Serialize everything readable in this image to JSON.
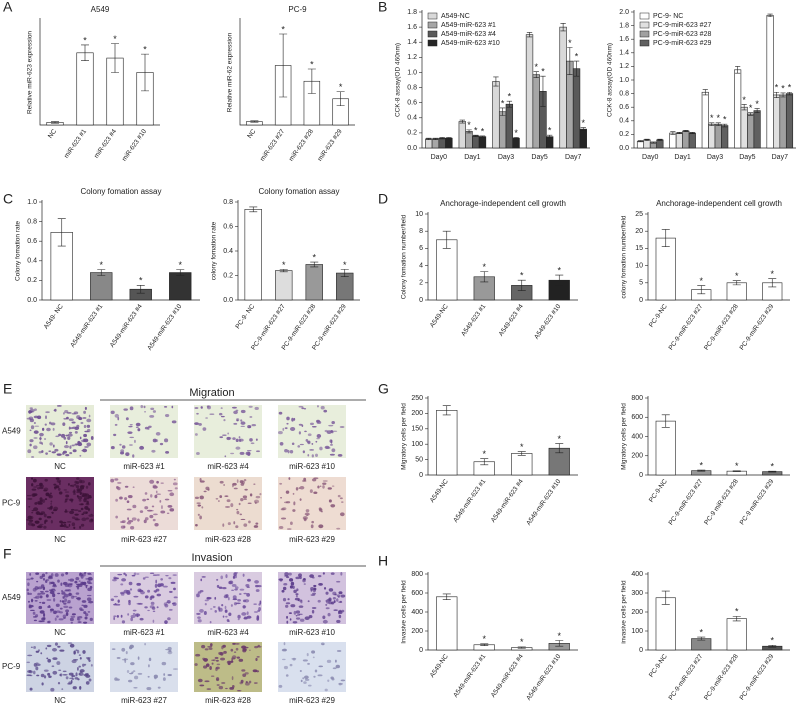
{
  "panel_labels": [
    "A",
    "B",
    "C",
    "D",
    "E",
    "F",
    "G",
    "H"
  ],
  "micrographs": [
    {
      "title": "Migration",
      "rows": [
        {
          "label": "A549",
          "captions": [
            "NC",
            "miR-623 #1",
            "miR-623 #4",
            "miR-623 #10"
          ]
        },
        {
          "label": "PC-9",
          "captions": [
            "NC",
            "miR-623 #27",
            "miR-623 #28",
            "miR-623 #29"
          ]
        }
      ]
    },
    {
      "title": "Invasion",
      "rows": [
        {
          "label": "A549",
          "captions": [
            "NC",
            "miR-623 #1",
            "miR-623 #4",
            "miR-623 #10"
          ]
        },
        {
          "label": "PC-9",
          "captions": [
            "NC",
            "miR-623 #27",
            "miR-623 #28",
            "miR-623 #29"
          ]
        }
      ]
    }
  ],
  "chart_data": [
    {
      "type": "bar",
      "title": "A549",
      "ylabel": "Relative miR-623 expression",
      "categories": [
        "NC",
        "miR-623 #1",
        "miR-623 #4",
        "miR-623 #10"
      ],
      "values": [
        1,
        27.5,
        25.5,
        20
      ],
      "errors": [
        0.3,
        3,
        5.5,
        7
      ],
      "stars": [
        null,
        "*",
        "*",
        "*"
      ],
      "colors": [
        "#ffffff",
        "#ffffff",
        "#ffffff",
        "#ffffff"
      ],
      "ylim": [
        0,
        40
      ]
    },
    {
      "type": "bar",
      "title": "PC-9",
      "ylabel": "Relative miR-62 expression",
      "categories": [
        "NC",
        "miR-623 #27",
        "miR-623 #28",
        "miR-623 #29"
      ],
      "values": [
        1,
        17,
        12.5,
        7.5
      ],
      "errors": [
        0.2,
        9,
        3.5,
        2
      ],
      "stars": [
        null,
        "*",
        "*",
        "*"
      ],
      "colors": [
        "#ffffff",
        "#ffffff",
        "#ffffff",
        "#ffffff"
      ],
      "ylim": [
        0,
        30
      ]
    },
    {
      "type": "bar",
      "ylabel": "CCK-8 assay(OD 460nm)",
      "legend": "upper left",
      "categories": [
        "Day0",
        "Day1",
        "Day3",
        "Day5",
        "Day7"
      ],
      "series": [
        {
          "name": "A549-NC",
          "color": "#d9d9d9",
          "values": [
            0.12,
            0.35,
            0.88,
            1.5,
            1.6
          ],
          "errors": [
            0.01,
            0.02,
            0.06,
            0.03,
            0.05
          ]
        },
        {
          "name": "A549-miR-623 #1",
          "color": "#a6a6a6",
          "values": [
            0.12,
            0.22,
            0.48,
            0.97,
            1.15
          ],
          "errors": [
            0.01,
            0.02,
            0.05,
            0.04,
            0.18
          ],
          "stars": [
            null,
            "*",
            "*",
            "*",
            "*"
          ]
        },
        {
          "name": "A549-miR-623 #4",
          "color": "#595959",
          "values": [
            0.13,
            0.16,
            0.58,
            0.75,
            1.05
          ],
          "errors": [
            0.01,
            0.01,
            0.04,
            0.2,
            0.1
          ],
          "stars": [
            null,
            "*",
            "*",
            "*",
            "*"
          ]
        },
        {
          "name": "A549-miR-623 #10",
          "color": "#262626",
          "values": [
            0.13,
            0.15,
            0.13,
            0.15,
            0.25
          ],
          "errors": [
            0.01,
            0.01,
            0.01,
            0.02,
            0.02
          ],
          "stars": [
            null,
            "*",
            "*",
            "*",
            "*"
          ]
        }
      ],
      "ylim": [
        0,
        1.8
      ],
      "yticks": [
        {
          "value": 0,
          "label": "0.0"
        },
        {
          "value": 0.2,
          "label": "0.2"
        },
        {
          "value": 0.4,
          "label": "0.4"
        },
        {
          "value": 0.6,
          "label": "0.6"
        },
        {
          "value": 0.8,
          "label": "0.8"
        },
        {
          "value": 1,
          "label": "1.0"
        },
        {
          "value": 1.2,
          "label": "1.2"
        },
        {
          "value": 1.4,
          "label": "1.4"
        },
        {
          "value": 1.6,
          "label": "1.6"
        },
        {
          "value": 1.8,
          "label": "1.8"
        }
      ]
    },
    {
      "type": "bar",
      "ylabel": "CCK-8 assay(OD 460nm)",
      "legend": "upper left",
      "categories": [
        "Day0",
        "Day1",
        "Day3",
        "Day5",
        "Day7"
      ],
      "series": [
        {
          "name": "PC-9- NC",
          "color": "#ffffff",
          "values": [
            0.1,
            0.22,
            0.82,
            1.15,
            1.95
          ],
          "errors": [
            0.01,
            0.02,
            0.04,
            0.05,
            0.02
          ]
        },
        {
          "name": "PC-9-miR-623 #27",
          "color": "#e0e0e0",
          "values": [
            0.12,
            0.22,
            0.35,
            0.6,
            0.78
          ],
          "errors": [
            0.01,
            0.01,
            0.02,
            0.04,
            0.04
          ],
          "stars": [
            null,
            null,
            "*",
            "*",
            "*"
          ]
        },
        {
          "name": "PC-9-miR-623 #28",
          "color": "#a0a0a0",
          "values": [
            0.08,
            0.25,
            0.35,
            0.5,
            0.78
          ],
          "errors": [
            0.01,
            0.01,
            0.02,
            0.02,
            0.03
          ],
          "stars": [
            null,
            null,
            "*",
            "*",
            "*"
          ]
        },
        {
          "name": "PC-9-miR-623 #29",
          "color": "#606060",
          "values": [
            0.12,
            0.22,
            0.33,
            0.55,
            0.8
          ],
          "errors": [
            0.01,
            0.01,
            0.02,
            0.03,
            0.02
          ],
          "stars": [
            null,
            null,
            "*",
            "*",
            "*"
          ]
        }
      ],
      "ylim": [
        0,
        2
      ],
      "yticks": [
        {
          "value": 0,
          "label": "0.0"
        },
        {
          "value": 0.2,
          "label": "0.2"
        },
        {
          "value": 0.4,
          "label": "0.4"
        },
        {
          "value": 0.6,
          "label": "0.6"
        },
        {
          "value": 0.8,
          "label": "0.8"
        },
        {
          "value": 1,
          "label": "1.0"
        },
        {
          "value": 1.2,
          "label": "1.2"
        },
        {
          "value": 1.4,
          "label": "1.4"
        },
        {
          "value": 1.6,
          "label": "1.6"
        },
        {
          "value": 1.8,
          "label": "1.8"
        },
        {
          "value": 2,
          "label": "2.0"
        }
      ]
    },
    {
      "type": "bar",
      "title": "Colony fomation assay",
      "ylabel": "Colony fomation rate",
      "categories": [
        "A549- NC",
        "A549-miR-623 #1",
        "A549-miR-623 #4",
        "A549-miR-623 #10"
      ],
      "values": [
        0.69,
        0.28,
        0.11,
        0.28
      ],
      "errors": [
        0.14,
        0.03,
        0.04,
        0.03
      ],
      "stars": [
        null,
        "*",
        "*",
        "*"
      ],
      "colors": [
        "#ffffff",
        "#888888",
        "#555555",
        "#333333"
      ],
      "ylim": [
        0,
        1
      ],
      "yticks": [
        {
          "value": 0,
          "label": "0.0"
        },
        {
          "value": 0.2,
          "label": "0.2"
        },
        {
          "value": 0.4,
          "label": "0.4"
        },
        {
          "value": 0.6,
          "label": "0.6"
        },
        {
          "value": 0.8,
          "label": "0.8"
        },
        {
          "value": 1,
          "label": "1.0"
        }
      ]
    },
    {
      "type": "bar",
      "title": "Colony fomation assay",
      "ylabel": "colony fomation rate",
      "categories": [
        "PC-9- NC",
        "PC-9-miR-623 #27",
        "PC-9-miR-623 #28",
        "PC-9-miR-623 #29"
      ],
      "values": [
        0.74,
        0.24,
        0.29,
        0.22
      ],
      "errors": [
        0.02,
        0.01,
        0.02,
        0.03
      ],
      "stars": [
        null,
        "*",
        "*",
        "*"
      ],
      "colors": [
        "#ffffff",
        "#dddddd",
        "#999999",
        "#777777"
      ],
      "ylim": [
        0,
        0.8
      ],
      "yticks": [
        {
          "value": 0,
          "label": "0.0"
        },
        {
          "value": 0.2,
          "label": "0.2"
        },
        {
          "value": 0.4,
          "label": "0.4"
        },
        {
          "value": 0.6,
          "label": "0.6"
        },
        {
          "value": 0.8,
          "label": "0.8"
        }
      ]
    },
    {
      "type": "bar",
      "title": "Anchorage-independent cell growth",
      "ylabel": "Colony fomation number/field",
      "categories": [
        "A549-NC",
        "A549-623 #1",
        "A549-623 #4",
        "A549-623 #10"
      ],
      "values": [
        7,
        2.7,
        1.7,
        2.3
      ],
      "errors": [
        1,
        0.6,
        0.6,
        0.6
      ],
      "stars": [
        null,
        "*",
        "*",
        "*"
      ],
      "colors": [
        "#ffffff",
        "#999999",
        "#666666",
        "#222222"
      ],
      "ylim": [
        0,
        10
      ],
      "yticks": [
        0,
        2,
        4,
        6,
        8,
        10
      ]
    },
    {
      "type": "bar",
      "title": "Anchorage-independent cell growth",
      "ylabel": "colony fomation number/field",
      "categories": [
        "PC-9-NC",
        "PC-9-miR-623 #27",
        "PC-9-miR-623 #28",
        "PC-9-miR-623 #29"
      ],
      "values": [
        18,
        3,
        5,
        5
      ],
      "errors": [
        2.5,
        1.2,
        0.6,
        1.2
      ],
      "stars": [
        null,
        "*",
        "*",
        "*"
      ],
      "colors": [
        "#ffffff",
        "#ffffff",
        "#ffffff",
        "#ffffff"
      ],
      "ylim": [
        0,
        25
      ],
      "yticks": [
        0,
        5,
        10,
        15,
        20,
        25
      ]
    },
    {
      "type": "bar",
      "ylabel": "Migratory cells per field",
      "categories": [
        "A549-NC",
        "A549-miR-623 #1",
        "A549-miR-623 #4",
        "A549-miR-623 #10"
      ],
      "values": [
        210,
        43,
        70,
        87
      ],
      "errors": [
        15,
        10,
        6,
        15
      ],
      "stars": [
        null,
        "*",
        "*",
        "*"
      ],
      "colors": [
        "#ffffff",
        "#ffffff",
        "#ffffff",
        "#777777"
      ],
      "ylim": [
        0,
        250
      ],
      "yticks": [
        0,
        50,
        100,
        150,
        200,
        250
      ]
    },
    {
      "type": "bar",
      "ylabel": "Migratory cells per field",
      "categories": [
        "PC-9-NC",
        "PC-9-miR-623 #27",
        "PC-9 miR-623 #28",
        "PC-9 miR-623 #29"
      ],
      "values": [
        560,
        45,
        40,
        35
      ],
      "errors": [
        65,
        6,
        4,
        5
      ],
      "stars": [
        null,
        "*",
        "*",
        "*"
      ],
      "colors": [
        "#ffffff",
        "#999999",
        "#ffffff",
        "#777777"
      ],
      "ylim": [
        0,
        800
      ],
      "yticks": [
        0,
        200,
        400,
        600,
        800
      ]
    },
    {
      "type": "bar",
      "ylabel": "Invasive cells per field",
      "categories": [
        "A549-NC",
        "A549-miR-623 #1",
        "A549-miR-623 #4",
        "A549-miR-623 #10"
      ],
      "values": [
        560,
        55,
        25,
        70
      ],
      "errors": [
        30,
        10,
        8,
        30
      ],
      "stars": [
        null,
        "*",
        "*",
        "*"
      ],
      "colors": [
        "#ffffff",
        "#ffffff",
        "#ffffff",
        "#999999"
      ],
      "ylim": [
        0,
        800
      ],
      "yticks": [
        0,
        200,
        400,
        600,
        800
      ]
    },
    {
      "type": "bar",
      "ylabel": "invasive cells per field",
      "categories": [
        "PC-9-NC",
        "PC-9-miR-623 #27",
        "PC-9-miR-623 #28",
        "PC-9-miR-623 #29"
      ],
      "values": [
        275,
        60,
        165,
        20
      ],
      "errors": [
        35,
        8,
        12,
        5
      ],
      "stars": [
        null,
        "*",
        "*",
        "*"
      ],
      "colors": [
        "#ffffff",
        "#888888",
        "#ffffff",
        "#555555"
      ],
      "ylim": [
        0,
        400
      ],
      "yticks": [
        0,
        100,
        200,
        300,
        400
      ]
    }
  ]
}
